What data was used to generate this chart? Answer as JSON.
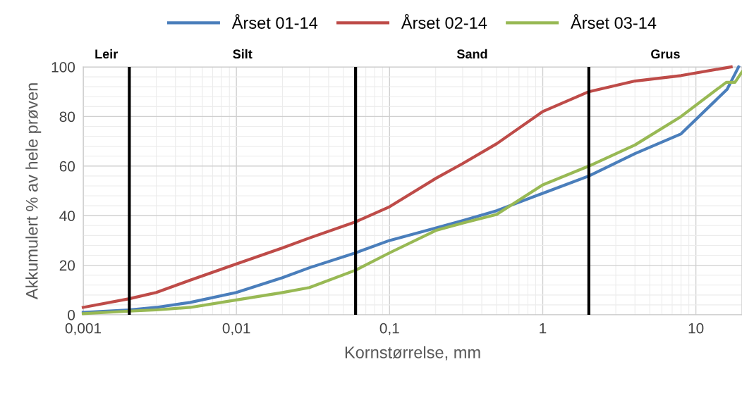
{
  "chart_data": {
    "type": "line",
    "xlabel": "Kornstørrelse, mm",
    "ylabel": "Akkumulert % av hele prøven",
    "log": "x",
    "xlim": [
      0.001,
      20
    ],
    "xticks": [
      {
        "value": 0.001,
        "label": "0,001"
      },
      {
        "value": 0.01,
        "label": "0,01"
      },
      {
        "value": 0.1,
        "label": "0,1"
      },
      {
        "value": 1,
        "label": "1"
      },
      {
        "value": 10,
        "label": "10"
      }
    ],
    "ylim": [
      0,
      100
    ],
    "yticks": [
      0,
      20,
      40,
      60,
      80,
      100
    ],
    "grid": true,
    "legend": "top",
    "marker": "none",
    "line_style": "solid",
    "series": [
      {
        "name": "Årset 01-14",
        "color": "#4a7ebb",
        "x": [
          0.001,
          0.002,
          0.003,
          0.005,
          0.01,
          0.02,
          0.03,
          0.06,
          0.1,
          0.2,
          0.3,
          0.5,
          1,
          2,
          4,
          8,
          16,
          19
        ],
        "values": [
          1,
          2,
          3,
          5,
          9,
          15,
          19,
          25,
          30,
          35,
          38,
          42,
          49,
          56,
          65,
          73,
          91,
          100
        ]
      },
      {
        "name": "Årset 02-14",
        "color": "#be4b48",
        "x": [
          0.001,
          0.002,
          0.003,
          0.005,
          0.01,
          0.02,
          0.03,
          0.06,
          0.1,
          0.2,
          0.3,
          0.5,
          1,
          2,
          4,
          8,
          17
        ],
        "values": [
          3,
          6.5,
          9,
          14,
          20.5,
          27,
          31,
          37.5,
          43.6,
          55,
          61,
          69,
          82,
          90,
          94.3,
          96.5,
          100
        ]
      },
      {
        "name": "Årset 03-14",
        "color": "#98b954",
        "x": [
          0.001,
          0.002,
          0.003,
          0.005,
          0.01,
          0.02,
          0.03,
          0.06,
          0.1,
          0.2,
          0.3,
          0.5,
          1,
          2,
          4,
          8,
          15.8,
          18,
          20
        ],
        "values": [
          0.5,
          1.5,
          2,
          3,
          6,
          9,
          11,
          18,
          25,
          34,
          37,
          40.5,
          52.4,
          60,
          68.5,
          80,
          93.8,
          93.8,
          98
        ]
      }
    ],
    "ref_lines": [
      {
        "axis": "x",
        "value": 0.002,
        "color": "#000000"
      },
      {
        "axis": "x",
        "value": 0.06,
        "color": "#000000"
      },
      {
        "axis": "x",
        "value": 2,
        "color": "#000000"
      }
    ],
    "annotations": [
      "Leir",
      "Silt",
      "Sand",
      "Grus"
    ]
  }
}
